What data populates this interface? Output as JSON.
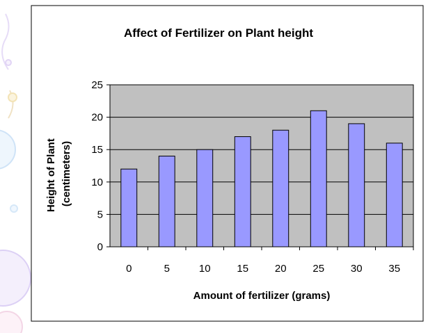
{
  "colors": {
    "plot_background": "#c0c0c0",
    "bar_fill": "#9999ff",
    "bar_stroke": "#000000",
    "frame": "#000000",
    "decoration": "#dcd0f5"
  },
  "chart_data": {
    "type": "bar",
    "title": "Affect of Fertilizer on Plant height",
    "xlabel": "Amount of fertilizer (grams)",
    "ylabel_lines": [
      "Height of Plant",
      "(centimeters)"
    ],
    "categories": [
      "0",
      "5",
      "10",
      "15",
      "20",
      "25",
      "30",
      "35"
    ],
    "values": [
      12,
      14,
      15,
      17,
      18,
      21,
      19,
      16
    ],
    "ylim": [
      0,
      25
    ],
    "yticks": [
      0,
      5,
      10,
      15,
      20,
      25
    ],
    "grid": true,
    "legend": "none"
  }
}
